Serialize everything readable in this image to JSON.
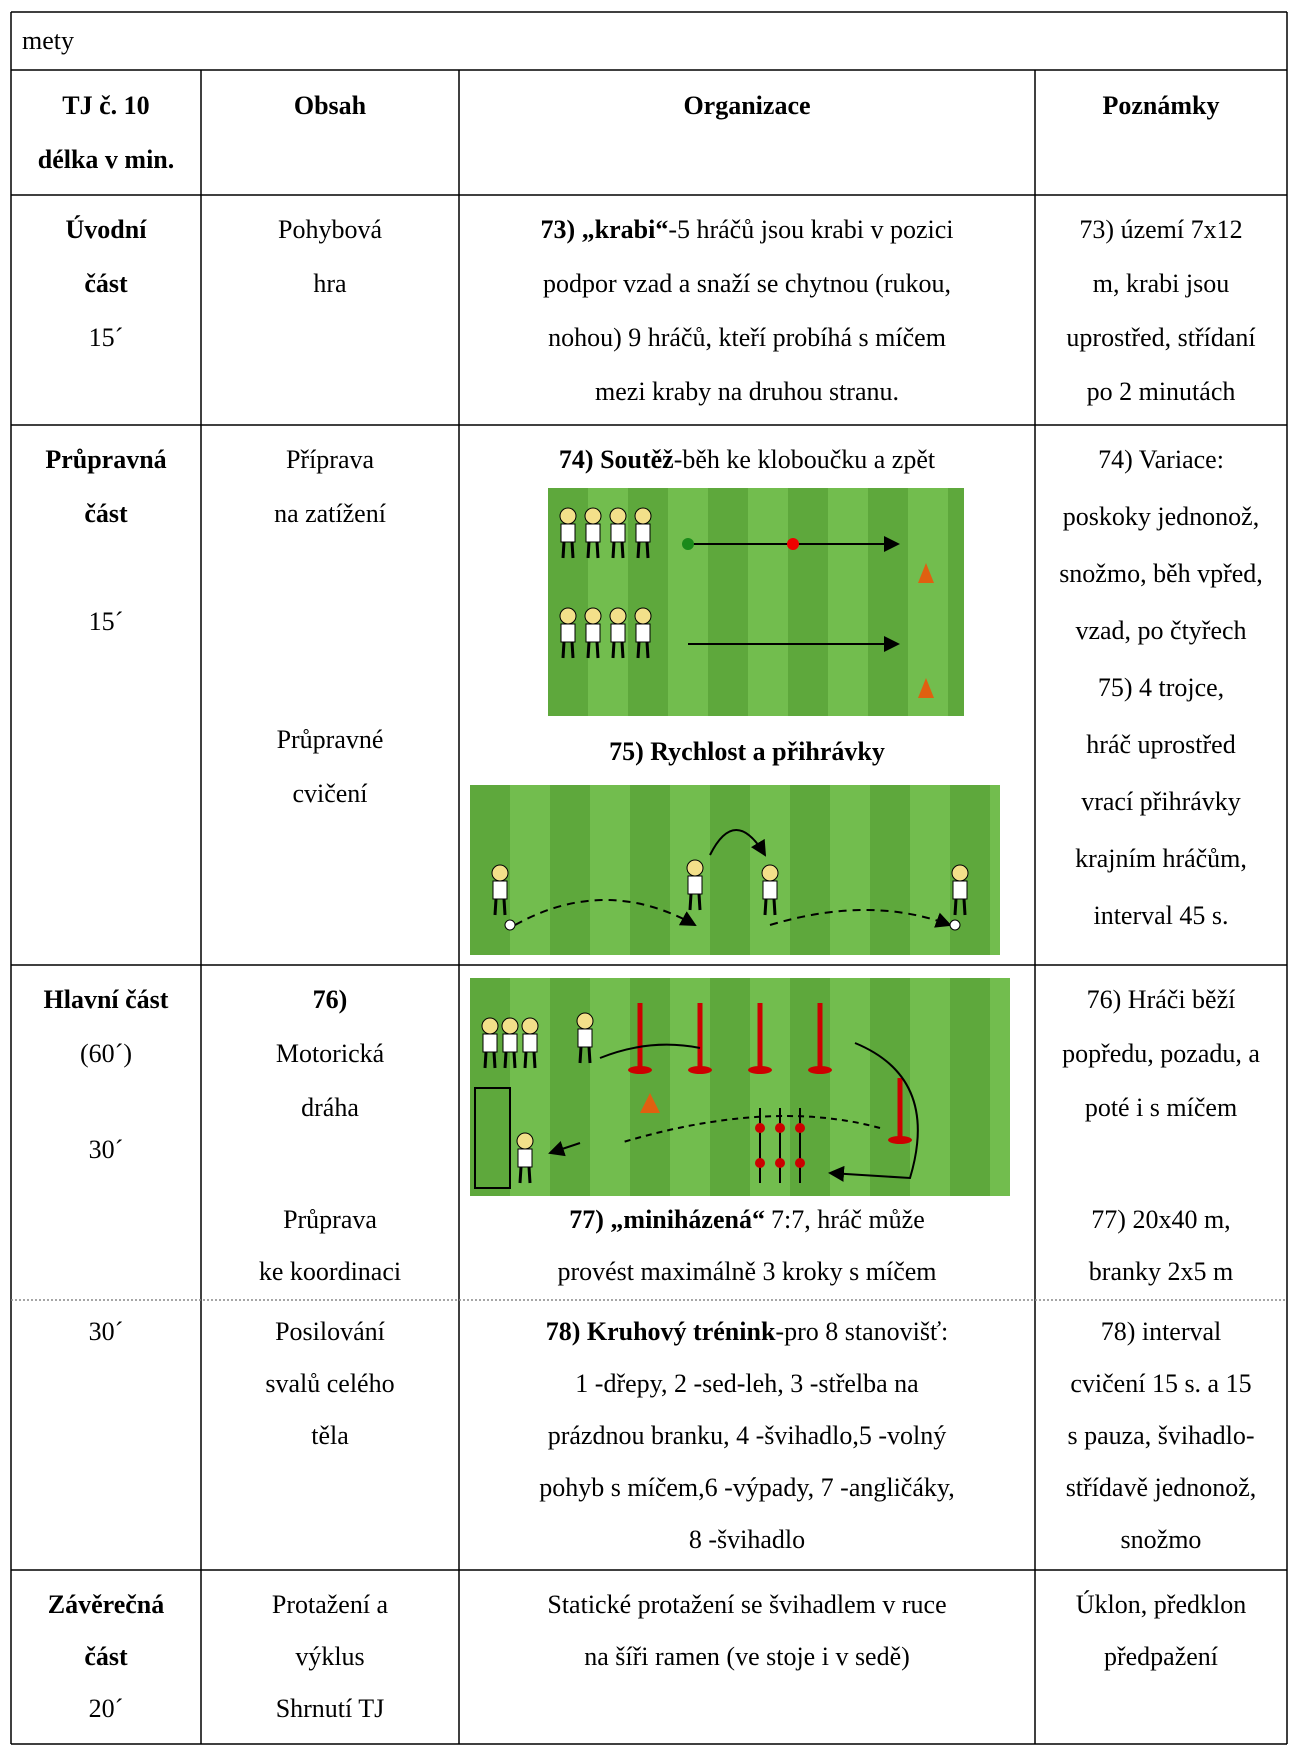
{
  "top_row": "mety",
  "header": {
    "unit": [
      "TJ č. 10",
      "délka v min."
    ],
    "content": "Obsah",
    "organization": "Organizace",
    "notes": "Poznámky"
  },
  "rows": [
    {
      "part": [
        "Úvodní",
        "část",
        "15´"
      ],
      "content": [
        "Pohybová",
        "hra"
      ],
      "organization": {
        "title": "73) „krabi“",
        "lines": [
          "-5 hráčů jsou krabi v pozici",
          "podpor vzad a snaží se chytnou (rukou,",
          "nohou) 9 hráčů, kteří probíhá s míčem",
          "mezi kraby na druhou stranu."
        ]
      },
      "notes": [
        "73) území 7x12",
        "m, krabi jsou",
        "uprostřed, střídaní",
        "po 2 minutách"
      ]
    },
    {
      "part": [
        "Průpravná",
        "část",
        "15´"
      ],
      "content": [
        "Příprava",
        "na zatížení",
        "Průpravné",
        "cvičení"
      ],
      "organization": [
        {
          "title": "74) Soutěž",
          "text": "-běh ke kloboučku a zpět"
        },
        {
          "title": "75) Rychlost a přihrávky"
        }
      ],
      "notes": [
        "74) Variace:",
        "poskoky jednonož,",
        "snožmo, běh vpřed,",
        "vzad, po čtyřech",
        "75) 4 trojce,",
        "hráč uprostřed",
        "vrací přihrávky",
        "krajním hráčům,",
        "interval 45 s."
      ]
    },
    {
      "part": [
        "Hlavní část",
        "(60´)",
        "30´"
      ],
      "content": [
        "76)",
        "Motorická",
        "dráha",
        "Průprava",
        "ke koordinaci"
      ],
      "organization": {
        "title": "77) „miniházená“",
        "lines": [
          "7:7, hráč může",
          "provést maximálně 3 kroky s míčem"
        ]
      },
      "notes": [
        "76) Hráči běží",
        "popředu, pozadu, a",
        "poté i s míčem",
        "77) 20x40 m,",
        "branky 2x5 m"
      ]
    },
    {
      "part": [
        "30´"
      ],
      "content": [
        "Posilování",
        "svalů celého",
        "těla"
      ],
      "organization": {
        "title": "78) Kruhový trénink",
        "lines": [
          "-pro 8 stanovišť:",
          "1 -dřepy, 2 -sed-leh, 3 -střelba na",
          "prázdnou branku, 4 -švihadlo,5 -volný",
          "pohyb s míčem,6 -výpady, 7 -angličáky,",
          "8 -švihadlo"
        ]
      },
      "notes": [
        "78) interval",
        "cvičení 15 s. a 15",
        "s pauza, švihadlo-",
        "střídavě jednonož,",
        "snožmo"
      ]
    },
    {
      "part": [
        "Závěrečná",
        "část",
        "20´"
      ],
      "content": [
        "Protažení a",
        "výklus",
        "Shrnutí TJ"
      ],
      "organization": {
        "lines": [
          "Statické protažení se švihadlem v ruce",
          "na šíři ramen (ve stoje i v sedě)"
        ]
      },
      "notes": [
        "Úklon, předklon",
        "předpažení"
      ]
    }
  ]
}
